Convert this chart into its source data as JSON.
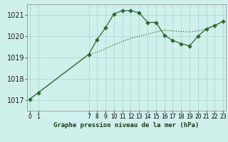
{
  "bg_color": "#d0f0ec",
  "grid_color": "#b0d8d4",
  "line_color": "#2d6a2d",
  "xlabel": "Graphe pression niveau de la mer (hPa)",
  "ylim": [
    1016.5,
    1021.5
  ],
  "yticks": [
    1017,
    1018,
    1019,
    1020,
    1021
  ],
  "xticks": [
    0,
    1,
    7,
    8,
    9,
    10,
    11,
    12,
    13,
    14,
    15,
    16,
    17,
    18,
    19,
    20,
    21,
    22,
    23
  ],
  "xlim": [
    -0.3,
    23.3
  ],
  "line1_x": [
    0,
    1,
    7,
    8,
    9,
    10,
    11,
    12,
    13,
    14,
    15,
    16,
    17,
    18,
    19,
    20,
    21,
    22,
    23
  ],
  "line1_y": [
    1017.05,
    1017.35,
    1019.15,
    1019.85,
    1020.4,
    1021.05,
    1021.2,
    1021.2,
    1021.1,
    1020.65,
    1020.65,
    1020.05,
    1019.8,
    1019.65,
    1019.55,
    1020.0,
    1020.35,
    1020.5,
    1020.7
  ],
  "line2_x": [
    0,
    1,
    7,
    8,
    9,
    10,
    11,
    12,
    13,
    14,
    15,
    16,
    17,
    18,
    19,
    20,
    21,
    22,
    23
  ],
  "line2_y": [
    1017.05,
    1017.35,
    1019.15,
    1019.25,
    1019.42,
    1019.6,
    1019.75,
    1019.9,
    1020.0,
    1020.1,
    1020.2,
    1020.28,
    1020.25,
    1020.22,
    1020.2,
    1020.25,
    1020.35,
    1020.5,
    1020.7
  ],
  "ytick_fontsize": 7,
  "xtick_fontsize": 5.5
}
